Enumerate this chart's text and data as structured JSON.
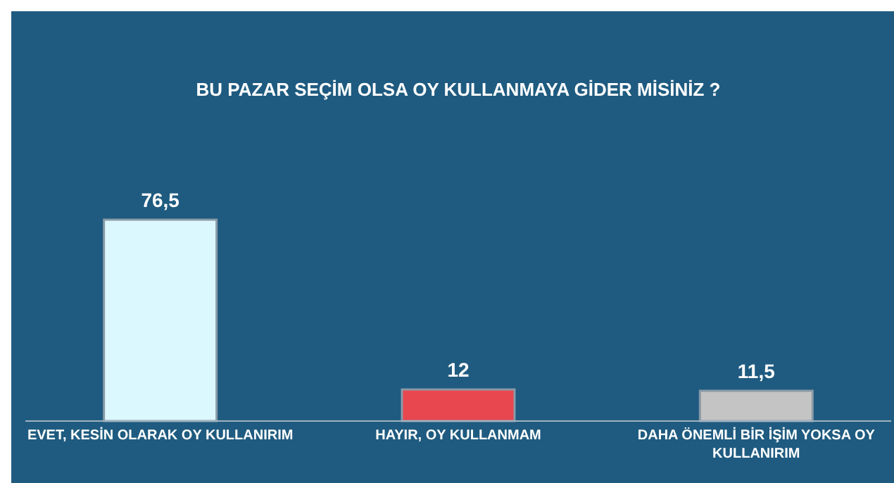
{
  "chart_data": {
    "type": "bar",
    "title": "BU PAZAR SEÇİM OLSA OY KULLANMAYA GİDER MİSİNİZ ?",
    "categories": [
      "EVET, KESİN OLARAK OY KULLANIRIM",
      "HAYIR, OY KULLANMAM",
      "DAHA ÖNEMLİ BİR İŞİM YOKSA OY KULLANIRIM"
    ],
    "values": [
      76.5,
      12,
      11.5
    ],
    "colors": [
      "#dcf8ff",
      "#e8474f",
      "#c4c4c4"
    ],
    "value_labels": [
      "76,5",
      "12",
      "11,5"
    ]
  }
}
